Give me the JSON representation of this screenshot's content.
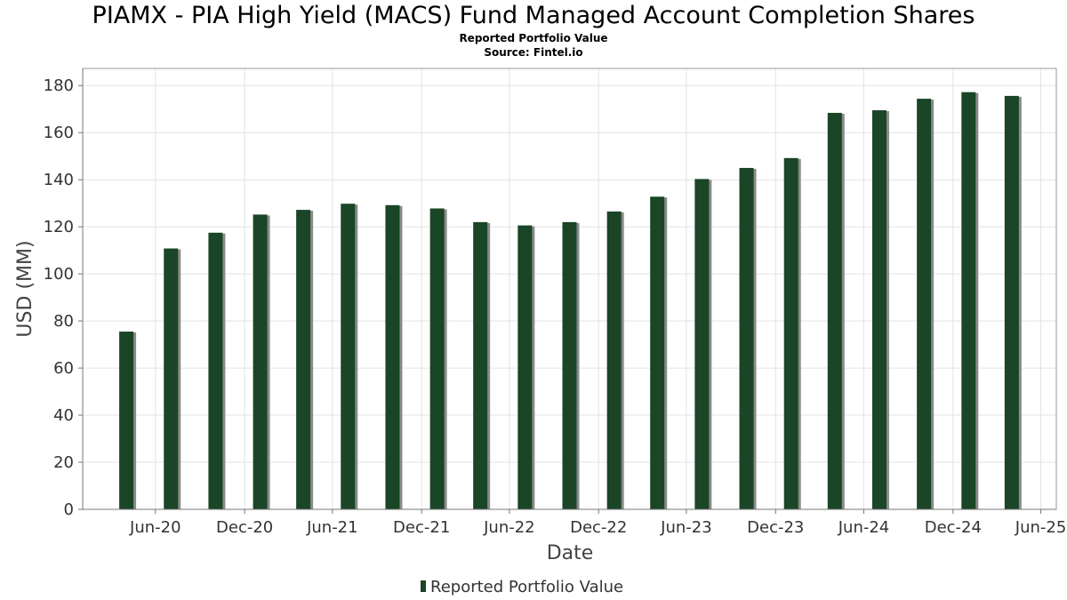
{
  "chart_data": {
    "type": "bar",
    "title": "PIAMX - PIA High Yield (MACS) Fund Managed Account Completion Shares",
    "subtitle": "Reported Portfolio Value",
    "source": "Source: Fintel.io",
    "xlabel": "Date",
    "ylabel": "USD (MM)",
    "ylim": [
      0,
      185
    ],
    "yticks": [
      0,
      20,
      40,
      60,
      80,
      100,
      120,
      140,
      160,
      180
    ],
    "xlim": [
      "2020-02-01",
      "2025-08-01"
    ],
    "xticks": [
      {
        "date": "2020-06-30",
        "label": "Jun-20"
      },
      {
        "date": "2020-12-31",
        "label": "Dec-20"
      },
      {
        "date": "2021-06-30",
        "label": "Jun-21"
      },
      {
        "date": "2021-12-31",
        "label": "Dec-21"
      },
      {
        "date": "2022-06-30",
        "label": "Jun-22"
      },
      {
        "date": "2022-12-31",
        "label": "Dec-22"
      },
      {
        "date": "2023-06-30",
        "label": "Jun-23"
      },
      {
        "date": "2023-12-31",
        "label": "Dec-23"
      },
      {
        "date": "2024-06-30",
        "label": "Jun-24"
      },
      {
        "date": "2024-12-31",
        "label": "Dec-24"
      },
      {
        "date": "2025-06-30",
        "label": "Jun-25"
      }
    ],
    "grid": true,
    "legend_position": "bottom-center",
    "series": [
      {
        "name": "Reported Portfolio Value",
        "color": "#1a4526",
        "shadow_color": "#8a8a8a",
        "points": [
          {
            "date": "2020-05-01",
            "value": 75.5
          },
          {
            "date": "2020-08-01",
            "value": 110.8
          },
          {
            "date": "2020-11-01",
            "value": 117.5
          },
          {
            "date": "2021-02-01",
            "value": 125.2
          },
          {
            "date": "2021-05-01",
            "value": 127.2
          },
          {
            "date": "2021-08-01",
            "value": 129.8
          },
          {
            "date": "2021-11-01",
            "value": 129.2
          },
          {
            "date": "2022-02-01",
            "value": 127.8
          },
          {
            "date": "2022-05-01",
            "value": 122.0
          },
          {
            "date": "2022-08-01",
            "value": 120.6
          },
          {
            "date": "2022-11-01",
            "value": 122.0
          },
          {
            "date": "2023-02-01",
            "value": 126.5
          },
          {
            "date": "2023-05-01",
            "value": 132.8
          },
          {
            "date": "2023-08-01",
            "value": 140.3
          },
          {
            "date": "2023-11-01",
            "value": 145.0
          },
          {
            "date": "2024-02-01",
            "value": 149.2
          },
          {
            "date": "2024-05-01",
            "value": 168.4
          },
          {
            "date": "2024-08-01",
            "value": 169.5
          },
          {
            "date": "2024-11-01",
            "value": 174.4
          },
          {
            "date": "2025-02-01",
            "value": 177.2
          },
          {
            "date": "2025-05-01",
            "value": 175.6
          }
        ]
      }
    ]
  }
}
